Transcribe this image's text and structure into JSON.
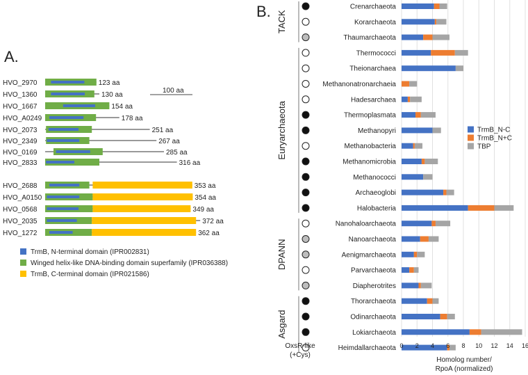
{
  "panel_a": {
    "label": "A.",
    "scale_label": "100 aa",
    "proteins": [
      {
        "name": "HVO_2970",
        "length": 123,
        "length_label": "123 aa",
        "segments": [
          {
            "type": "wh",
            "start": 0,
            "end": 123
          },
          {
            "type": "n",
            "start": 14,
            "end": 94
          }
        ]
      },
      {
        "name": "HVO_1360",
        "length": 130,
        "length_label": "130 aa",
        "segments": [
          {
            "type": "wh",
            "start": 0,
            "end": 118
          },
          {
            "type": "n",
            "start": 14,
            "end": 95
          }
        ]
      },
      {
        "name": "HVO_1667",
        "length": 154,
        "length_label": "154 aa",
        "segments": [
          {
            "type": "wh",
            "start": 0,
            "end": 154
          },
          {
            "type": "n",
            "start": 43,
            "end": 120
          }
        ]
      },
      {
        "name": "HVO_A0249",
        "length": 178,
        "length_label": "178 aa",
        "segments": [
          {
            "type": "wh",
            "start": 0,
            "end": 122
          },
          {
            "type": "n",
            "start": 10,
            "end": 92
          }
        ]
      },
      {
        "name": "HVO_2073",
        "length": 251,
        "length_label": "251 aa",
        "segments": [
          {
            "type": "wh",
            "start": 2,
            "end": 112
          },
          {
            "type": "n",
            "start": 8,
            "end": 80
          }
        ]
      },
      {
        "name": "HVO_2349",
        "length": 267,
        "length_label": "267 aa",
        "segments": [
          {
            "type": "wh",
            "start": 2,
            "end": 106
          },
          {
            "type": "n",
            "start": 4,
            "end": 82
          }
        ]
      },
      {
        "name": "HVO_0169",
        "length": 285,
        "length_label": "285 aa",
        "segments": [
          {
            "type": "wh",
            "start": 20,
            "end": 138
          },
          {
            "type": "n",
            "start": 26,
            "end": 108
          }
        ]
      },
      {
        "name": "HVO_2833",
        "length": 316,
        "length_label": "316 aa",
        "segments": [
          {
            "type": "wh",
            "start": 0,
            "end": 130
          },
          {
            "type": "n",
            "start": 2,
            "end": 70
          }
        ]
      },
      {
        "name": "HVO_2688",
        "length": 353,
        "length_label": "353 aa",
        "segments": [
          {
            "type": "wh",
            "start": 0,
            "end": 106
          },
          {
            "type": "n",
            "start": 10,
            "end": 82
          },
          {
            "type": "c",
            "start": 114,
            "end": 353
          }
        ]
      },
      {
        "name": "HVO_A0150",
        "length": 354,
        "length_label": "354 aa",
        "segments": [
          {
            "type": "wh",
            "start": 0,
            "end": 114
          },
          {
            "type": "n",
            "start": 4,
            "end": 82
          },
          {
            "type": "c",
            "start": 114,
            "end": 354
          }
        ]
      },
      {
        "name": "HVO_0568",
        "length": 349,
        "length_label": "349 aa",
        "segments": [
          {
            "type": "wh",
            "start": 0,
            "end": 114
          },
          {
            "type": "n",
            "start": 4,
            "end": 80
          },
          {
            "type": "c",
            "start": 114,
            "end": 349
          }
        ]
      },
      {
        "name": "HVO_2035",
        "length": 372,
        "length_label": "372 aa",
        "segments": [
          {
            "type": "wh",
            "start": 0,
            "end": 112
          },
          {
            "type": "n",
            "start": 4,
            "end": 76
          },
          {
            "type": "c",
            "start": 112,
            "end": 362
          }
        ]
      },
      {
        "name": "HVO_1272",
        "length": 362,
        "length_label": "362 aa",
        "segments": [
          {
            "type": "wh",
            "start": 0,
            "end": 112
          },
          {
            "type": "n",
            "start": 10,
            "end": 66
          },
          {
            "type": "c",
            "start": 112,
            "end": 362
          }
        ]
      }
    ],
    "legend": [
      {
        "key": "n",
        "label": "TrmB, N-terminal domain (IPR002831)",
        "color": "#4472c4"
      },
      {
        "key": "wh",
        "label": "Winged helix-like DNA-binding domain superfamily (IPR036388)",
        "color": "#70ad47"
      },
      {
        "key": "c",
        "label": "TrmB, C-terminal domain (IPR021586)",
        "color": "#ffc000"
      }
    ]
  },
  "panel_b": {
    "label": "B.",
    "oxsr_label_1": "OxsR-like",
    "oxsr_label_2": "(+Cys)",
    "groups": [
      {
        "name": "TACK",
        "first": 0,
        "last": 2
      },
      {
        "name": "Euryarchaeota",
        "first": 3,
        "last": 13
      },
      {
        "name": "DPANN",
        "first": 14,
        "last": 18
      },
      {
        "name": "Asgard",
        "first": 19,
        "last": 22
      }
    ],
    "oxsr_status": [
      "filled",
      "open",
      "gray",
      "open",
      "open",
      "open",
      "open",
      "filled",
      "filled",
      "open",
      "filled",
      "filled",
      "filled",
      "filled",
      "open",
      "gray",
      "gray",
      "open",
      "gray",
      "filled",
      "filled",
      "filled",
      "open"
    ]
  },
  "chart_data": {
    "type": "bar",
    "orientation": "horizontal",
    "stacked": true,
    "categories": [
      "Crenarchaeota",
      "Korarchaeota",
      "Thaumarchaeota",
      "Thermococci",
      "Theionarchaea",
      "Methanonatronarchaeia",
      "Hadesarchaea",
      "Thermoplasmata",
      "Methanopyri",
      "Methanobacteria",
      "Methanomicrobia",
      "Methanococci",
      "Archaeoglobi",
      "Halobacteria",
      "Nanohaloarchaeota",
      "Nanoarchaeota",
      "Aenigmarchaeota",
      "Parvarchaeota",
      "Diapherotrites",
      "Thorarchaeota",
      "Odinarchaeota",
      "Lokiarchaeota",
      "Heimdallarchaeota"
    ],
    "series": [
      {
        "name": "TrmB_N-C",
        "color": "#4472c4",
        "values": [
          4.2,
          4.3,
          2.8,
          3.8,
          7.0,
          0.0,
          0.8,
          1.8,
          4.0,
          1.5,
          2.6,
          2.8,
          5.4,
          8.6,
          3.9,
          2.4,
          1.6,
          1.0,
          2.2,
          3.3,
          5.0,
          8.8,
          5.9
        ]
      },
      {
        "name": "TrmB_N+C",
        "color": "#ed7d31",
        "values": [
          0.7,
          0.2,
          1.2,
          3.1,
          0.0,
          1.0,
          0.3,
          0.7,
          0.0,
          0.2,
          0.4,
          0.0,
          0.4,
          3.4,
          0.5,
          1.1,
          0.4,
          0.6,
          0.3,
          0.7,
          0.9,
          1.5,
          0.3
        ]
      },
      {
        "name": "TBP",
        "color": "#a5a5a5",
        "values": [
          1.0,
          1.3,
          2.2,
          1.7,
          1.0,
          1.0,
          1.5,
          1.9,
          1.1,
          1.0,
          1.7,
          1.2,
          1.0,
          2.5,
          1.9,
          1.3,
          1.0,
          0.6,
          1.4,
          0.8,
          1.0,
          5.3,
          0.8
        ]
      }
    ],
    "xticks": [
      "0",
      "2",
      "4",
      "6",
      "8",
      "10",
      "12",
      "14",
      "16"
    ],
    "xlim": [
      0,
      16
    ],
    "xlabel_1": "Homolog number/",
    "xlabel_2": "RpoA (normalized)",
    "legend_position": "right",
    "grid": true
  }
}
